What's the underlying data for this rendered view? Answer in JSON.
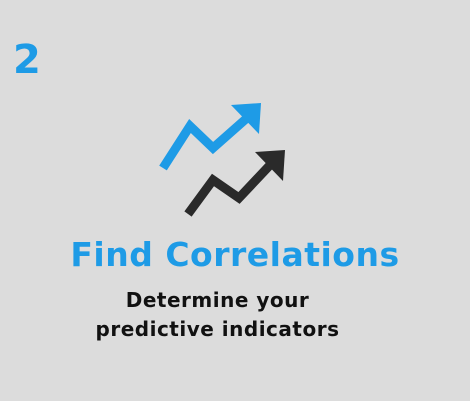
{
  "step": {
    "number": "2"
  },
  "icon": {
    "name": "trend-up-arrows-icon",
    "upper_color": "#1e9be6",
    "lower_color": "#2a2a2a"
  },
  "title": "Find Correlations",
  "subtitle": {
    "line1": "Determine your",
    "line2": "predictive indicators"
  },
  "colors": {
    "background": "#dcdcdc",
    "accent": "#1e9be6",
    "text": "#111111"
  }
}
